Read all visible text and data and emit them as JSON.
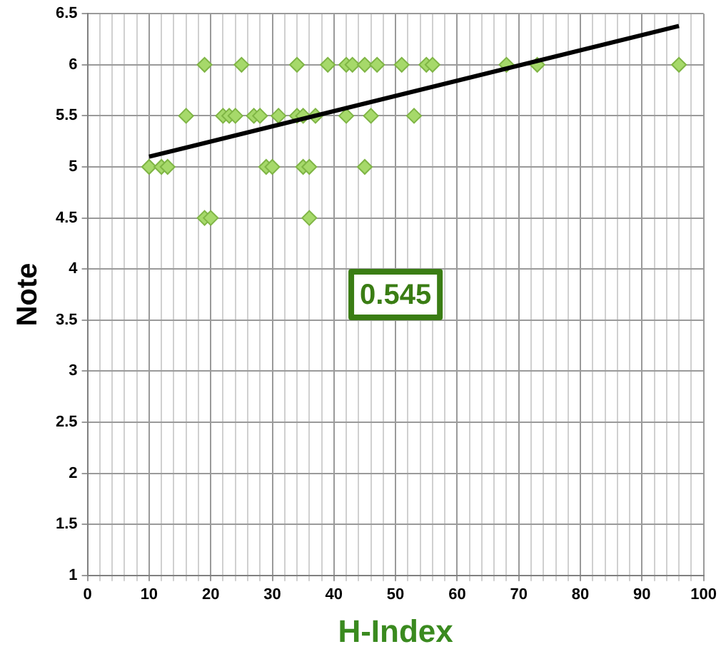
{
  "chart_data": {
    "type": "scatter",
    "xlabel": "H-Index",
    "ylabel": "Note",
    "annotations": [
      "0.545"
    ],
    "series": [
      {
        "type": "scatter",
        "color": "#a6d96a",
        "marker": "diamond",
        "x": [
          19,
          25,
          34,
          39,
          42,
          43,
          45,
          47,
          51,
          55,
          56,
          68,
          73,
          96,
          16,
          22,
          23,
          24,
          27,
          28,
          31,
          34,
          35,
          37,
          42,
          46,
          53,
          10,
          12,
          13,
          29,
          30,
          35,
          36,
          45,
          19,
          20,
          36
        ],
        "values": [
          6,
          6,
          6,
          6,
          6,
          6,
          6,
          6,
          6,
          6,
          6,
          6,
          6,
          6,
          5.5,
          5.5,
          5.5,
          5.5,
          5.5,
          5.5,
          5.5,
          5.5,
          5.5,
          5.5,
          5.5,
          5.5,
          5.5,
          5,
          5,
          5,
          5,
          5,
          5,
          5,
          5,
          4.5,
          4.5,
          4.5
        ]
      },
      {
        "type": "line",
        "color": "#000000",
        "marker": "none",
        "x": [
          10,
          96
        ],
        "values": [
          5.1,
          6.38
        ]
      }
    ],
    "xlim": [
      0,
      100
    ],
    "xticks": [
      0,
      {
        "value": 2,
        "label": null
      },
      {
        "value": 4,
        "label": null
      },
      {
        "value": 6,
        "label": null
      },
      {
        "value": 8,
        "label": null
      },
      10,
      {
        "value": 12,
        "label": null
      },
      {
        "value": 14,
        "label": null
      },
      {
        "value": 16,
        "label": null
      },
      {
        "value": 18,
        "label": null
      },
      20,
      {
        "value": 22,
        "label": null
      },
      {
        "value": 24,
        "label": null
      },
      {
        "value": 26,
        "label": null
      },
      {
        "value": 28,
        "label": null
      },
      30,
      {
        "value": 32,
        "label": null
      },
      {
        "value": 34,
        "label": null
      },
      {
        "value": 36,
        "label": null
      },
      {
        "value": 38,
        "label": null
      },
      40,
      {
        "value": 42,
        "label": null
      },
      {
        "value": 44,
        "label": null
      },
      {
        "value": 46,
        "label": null
      },
      {
        "value": 48,
        "label": null
      },
      50,
      {
        "value": 52,
        "label": null
      },
      {
        "value": 54,
        "label": null
      },
      {
        "value": 56,
        "label": null
      },
      {
        "value": 58,
        "label": null
      },
      60,
      {
        "value": 62,
        "label": null
      },
      {
        "value": 64,
        "label": null
      },
      {
        "value": 66,
        "label": null
      },
      {
        "value": 68,
        "label": null
      },
      70,
      {
        "value": 72,
        "label": null
      },
      {
        "value": 74,
        "label": null
      },
      {
        "value": 76,
        "label": null
      },
      {
        "value": 78,
        "label": null
      },
      80,
      {
        "value": 82,
        "label": null
      },
      {
        "value": 84,
        "label": null
      },
      {
        "value": 86,
        "label": null
      },
      {
        "value": 88,
        "label": null
      },
      90,
      {
        "value": 92,
        "label": null
      },
      {
        "value": 94,
        "label": null
      },
      {
        "value": 96,
        "label": null
      },
      {
        "value": 98,
        "label": null
      },
      100
    ],
    "ylim": [
      1,
      6.5
    ],
    "yticks": [
      1,
      1.5,
      2,
      2.5,
      3,
      3.5,
      4,
      4.5,
      5,
      5.5,
      6,
      6.5
    ],
    "grid": true,
    "legend": false
  }
}
